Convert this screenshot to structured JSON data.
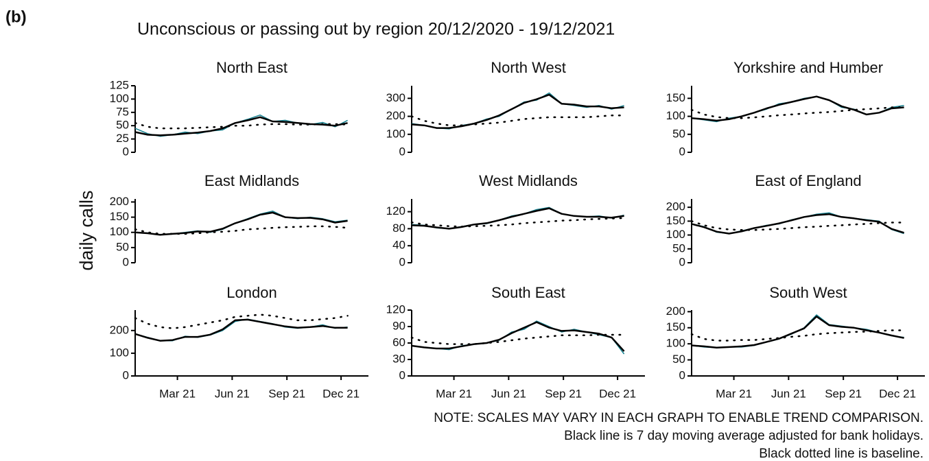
{
  "panel_label": "(b)",
  "title": "Unconscious or passing out by region 20/12/2020 - 19/12/2021",
  "ylabel": "daily calls",
  "notes": [
    "NOTE: SCALES MAY VARY IN EACH GRAPH TO ENABLE TREND COMPARISON.",
    "Black line is 7 day moving average adjusted for bank holidays.",
    "Black dotted line is baseline."
  ],
  "chart_data": [
    {
      "type": "line",
      "title": "North East",
      "x": [
        0,
        21,
        42,
        63,
        84,
        105,
        126,
        147,
        168,
        189,
        210,
        231,
        252,
        273,
        294,
        315,
        336,
        357
      ],
      "xlim": [
        0,
        392
      ],
      "ylim": [
        0,
        125
      ],
      "yticks": [
        0,
        25,
        50,
        75,
        100,
        125
      ],
      "series": [
        {
          "color": "#13808f",
          "style": "solid",
          "values": [
            45,
            35,
            30,
            33,
            38,
            35,
            40,
            42,
            55,
            62,
            70,
            58,
            60,
            55,
            52,
            56,
            48,
            60
          ]
        },
        {
          "color": "#000000",
          "style": "solid",
          "values": [
            38,
            33,
            32,
            33,
            35,
            37,
            40,
            45,
            55,
            60,
            66,
            58,
            57,
            55,
            53,
            52,
            50,
            55
          ]
        },
        {
          "color": "#000000",
          "style": "dotted",
          "values": [
            55,
            48,
            45,
            45,
            45,
            46,
            47,
            48,
            50,
            50,
            52,
            53,
            53,
            52,
            52,
            53,
            53,
            52
          ]
        }
      ]
    },
    {
      "type": "line",
      "title": "North West",
      "x": [
        0,
        21,
        42,
        63,
        84,
        105,
        126,
        147,
        168,
        189,
        210,
        231,
        252,
        273,
        294,
        315,
        336,
        357
      ],
      "xlim": [
        0,
        392
      ],
      "ylim": [
        0,
        370
      ],
      "yticks": [
        0,
        100,
        200,
        300
      ],
      "series": [
        {
          "color": "#13808f",
          "style": "solid",
          "values": [
            160,
            150,
            135,
            130,
            150,
            160,
            185,
            200,
            240,
            280,
            290,
            330,
            270,
            260,
            250,
            260,
            240,
            260
          ]
        },
        {
          "color": "#000000",
          "style": "solid",
          "values": [
            155,
            150,
            135,
            135,
            145,
            160,
            180,
            205,
            240,
            275,
            295,
            320,
            270,
            265,
            255,
            255,
            245,
            250
          ]
        },
        {
          "color": "#000000",
          "style": "dotted",
          "values": [
            200,
            175,
            160,
            150,
            150,
            155,
            160,
            165,
            175,
            185,
            190,
            195,
            195,
            195,
            195,
            200,
            205,
            205
          ]
        }
      ]
    },
    {
      "type": "line",
      "title": "Yorkshire and Humber",
      "x": [
        0,
        21,
        42,
        63,
        84,
        105,
        126,
        147,
        168,
        189,
        210,
        231,
        252,
        273,
        294,
        315,
        336,
        357
      ],
      "xlim": [
        0,
        392
      ],
      "ylim": [
        0,
        185
      ],
      "yticks": [
        0,
        50,
        100,
        150
      ],
      "series": [
        {
          "color": "#13808f",
          "style": "solid",
          "values": [
            95,
            90,
            85,
            95,
            100,
            110,
            120,
            135,
            140,
            150,
            155,
            145,
            125,
            120,
            105,
            110,
            125,
            130
          ]
        },
        {
          "color": "#000000",
          "style": "solid",
          "values": [
            95,
            92,
            88,
            92,
            100,
            110,
            122,
            132,
            140,
            148,
            155,
            145,
            128,
            118,
            105,
            110,
            122,
            125
          ]
        },
        {
          "color": "#000000",
          "style": "dotted",
          "values": [
            118,
            105,
            98,
            95,
            95,
            97,
            100,
            103,
            105,
            108,
            110,
            112,
            115,
            118,
            120,
            122,
            125,
            125
          ]
        }
      ]
    },
    {
      "type": "line",
      "title": "East Midlands",
      "x": [
        0,
        21,
        42,
        63,
        84,
        105,
        126,
        147,
        168,
        189,
        210,
        231,
        252,
        273,
        294,
        315,
        336,
        357
      ],
      "xlim": [
        0,
        392
      ],
      "ylim": [
        0,
        210
      ],
      "yticks": [
        0,
        50,
        100,
        150,
        200
      ],
      "series": [
        {
          "color": "#13808f",
          "style": "solid",
          "values": [
            100,
            98,
            92,
            95,
            100,
            105,
            100,
            110,
            130,
            145,
            160,
            170,
            150,
            145,
            150,
            145,
            135,
            140
          ]
        },
        {
          "color": "#000000",
          "style": "solid",
          "values": [
            100,
            97,
            92,
            95,
            98,
            103,
            102,
            112,
            130,
            143,
            158,
            165,
            150,
            147,
            148,
            143,
            132,
            138
          ]
        },
        {
          "color": "#000000",
          "style": "dotted",
          "values": [
            110,
            100,
            95,
            95,
            95,
            97,
            100,
            102,
            105,
            110,
            112,
            115,
            117,
            118,
            120,
            120,
            118,
            115
          ]
        }
      ]
    },
    {
      "type": "line",
      "title": "West Midlands",
      "x": [
        0,
        21,
        42,
        63,
        84,
        105,
        126,
        147,
        168,
        189,
        210,
        231,
        252,
        273,
        294,
        315,
        336,
        357
      ],
      "xlim": [
        0,
        392
      ],
      "ylim": [
        0,
        150
      ],
      "yticks": [
        0,
        40,
        80,
        120
      ],
      "series": [
        {
          "color": "#13808f",
          "style": "solid",
          "values": [
            90,
            88,
            82,
            80,
            85,
            90,
            92,
            100,
            110,
            115,
            125,
            130,
            115,
            110,
            108,
            110,
            105,
            112
          ]
        },
        {
          "color": "#000000",
          "style": "solid",
          "values": [
            88,
            87,
            83,
            80,
            84,
            90,
            93,
            100,
            108,
            115,
            122,
            128,
            115,
            110,
            108,
            108,
            106,
            110
          ]
        },
        {
          "color": "#000000",
          "style": "dotted",
          "values": [
            95,
            90,
            88,
            86,
            85,
            86,
            87,
            88,
            90,
            93,
            95,
            97,
            99,
            100,
            102,
            103,
            104,
            105
          ]
        }
      ]
    },
    {
      "type": "line",
      "title": "East of England",
      "x": [
        0,
        21,
        42,
        63,
        84,
        105,
        126,
        147,
        168,
        189,
        210,
        231,
        252,
        273,
        294,
        315,
        336,
        357
      ],
      "xlim": [
        0,
        392
      ],
      "ylim": [
        0,
        230
      ],
      "yticks": [
        0,
        50,
        100,
        150,
        200
      ],
      "series": [
        {
          "color": "#13808f",
          "style": "solid",
          "values": [
            140,
            130,
            110,
            105,
            115,
            125,
            135,
            140,
            155,
            165,
            175,
            180,
            165,
            160,
            155,
            150,
            120,
            105
          ]
        },
        {
          "color": "#000000",
          "style": "solid",
          "values": [
            140,
            128,
            112,
            105,
            113,
            125,
            133,
            142,
            153,
            165,
            172,
            175,
            165,
            160,
            153,
            148,
            122,
            108
          ]
        },
        {
          "color": "#000000",
          "style": "dotted",
          "values": [
            150,
            135,
            125,
            120,
            118,
            118,
            120,
            122,
            125,
            128,
            130,
            133,
            135,
            138,
            140,
            143,
            145,
            145
          ]
        }
      ]
    },
    {
      "type": "line",
      "title": "London",
      "x": [
        0,
        21,
        42,
        63,
        84,
        105,
        126,
        147,
        168,
        189,
        210,
        231,
        252,
        273,
        294,
        315,
        336,
        357
      ],
      "xlim": [
        0,
        392
      ],
      "ylim": [
        0,
        290
      ],
      "yticks": [
        0,
        100,
        200
      ],
      "xticks": [
        {
          "value": 71,
          "label": "Mar 21"
        },
        {
          "value": 163,
          "label": "Jun 21"
        },
        {
          "value": 255,
          "label": "Sep 21"
        },
        {
          "value": 346,
          "label": "Dec 21"
        }
      ],
      "series": [
        {
          "color": "#13808f",
          "style": "solid",
          "values": [
            185,
            170,
            155,
            155,
            175,
            170,
            180,
            200,
            240,
            250,
            240,
            230,
            215,
            210,
            215,
            225,
            210,
            215
          ]
        },
        {
          "color": "#000000",
          "style": "solid",
          "values": [
            185,
            168,
            155,
            158,
            172,
            172,
            182,
            205,
            245,
            248,
            238,
            228,
            218,
            212,
            215,
            220,
            212,
            212
          ]
        },
        {
          "color": "#000000",
          "style": "dotted",
          "values": [
            255,
            230,
            215,
            210,
            215,
            225,
            235,
            245,
            260,
            265,
            270,
            265,
            255,
            245,
            245,
            250,
            255,
            265
          ]
        }
      ]
    },
    {
      "type": "line",
      "title": "South East",
      "x": [
        0,
        21,
        42,
        63,
        84,
        105,
        126,
        147,
        168,
        189,
        210,
        231,
        252,
        273,
        294,
        315,
        336,
        357
      ],
      "xlim": [
        0,
        392
      ],
      "ylim": [
        0,
        120
      ],
      "yticks": [
        0,
        30,
        60,
        90,
        120
      ],
      "xticks": [
        {
          "value": 71,
          "label": "Mar 21"
        },
        {
          "value": 163,
          "label": "Jun 21"
        },
        {
          "value": 255,
          "label": "Sep 21"
        },
        {
          "value": 346,
          "label": "Dec 21"
        }
      ],
      "series": [
        {
          "color": "#13808f",
          "style": "solid",
          "values": [
            55,
            52,
            50,
            48,
            55,
            58,
            60,
            65,
            80,
            85,
            100,
            90,
            80,
            85,
            80,
            75,
            70,
            40
          ]
        },
        {
          "color": "#000000",
          "style": "solid",
          "values": [
            55,
            52,
            50,
            50,
            54,
            58,
            60,
            66,
            78,
            88,
            98,
            88,
            82,
            83,
            80,
            77,
            70,
            45
          ]
        },
        {
          "color": "#000000",
          "style": "dotted",
          "values": [
            70,
            62,
            60,
            58,
            58,
            58,
            60,
            62,
            65,
            68,
            70,
            72,
            74,
            74,
            74,
            75,
            75,
            75
          ]
        }
      ]
    },
    {
      "type": "line",
      "title": "South West",
      "x": [
        0,
        21,
        42,
        63,
        84,
        105,
        126,
        147,
        168,
        189,
        210,
        231,
        252,
        273,
        294,
        315,
        336,
        357
      ],
      "xlim": [
        0,
        392
      ],
      "ylim": [
        0,
        205
      ],
      "yticks": [
        0,
        50,
        100,
        150,
        200
      ],
      "xticks": [
        {
          "value": 71,
          "label": "Mar 21"
        },
        {
          "value": 163,
          "label": "Jun 21"
        },
        {
          "value": 255,
          "label": "Sep 21"
        },
        {
          "value": 346,
          "label": "Dec 21"
        }
      ],
      "series": [
        {
          "color": "#13808f",
          "style": "solid",
          "values": [
            95,
            90,
            88,
            90,
            90,
            95,
            105,
            115,
            130,
            150,
            190,
            160,
            155,
            150,
            145,
            135,
            125,
            120
          ]
        },
        {
          "color": "#000000",
          "style": "solid",
          "values": [
            95,
            92,
            88,
            90,
            92,
            96,
            106,
            116,
            132,
            148,
            185,
            158,
            153,
            150,
            142,
            135,
            126,
            118
          ]
        },
        {
          "color": "#000000",
          "style": "dotted",
          "values": [
            130,
            115,
            110,
            110,
            112,
            112,
            115,
            118,
            122,
            125,
            130,
            133,
            135,
            137,
            138,
            140,
            142,
            142
          ]
        }
      ]
    }
  ]
}
